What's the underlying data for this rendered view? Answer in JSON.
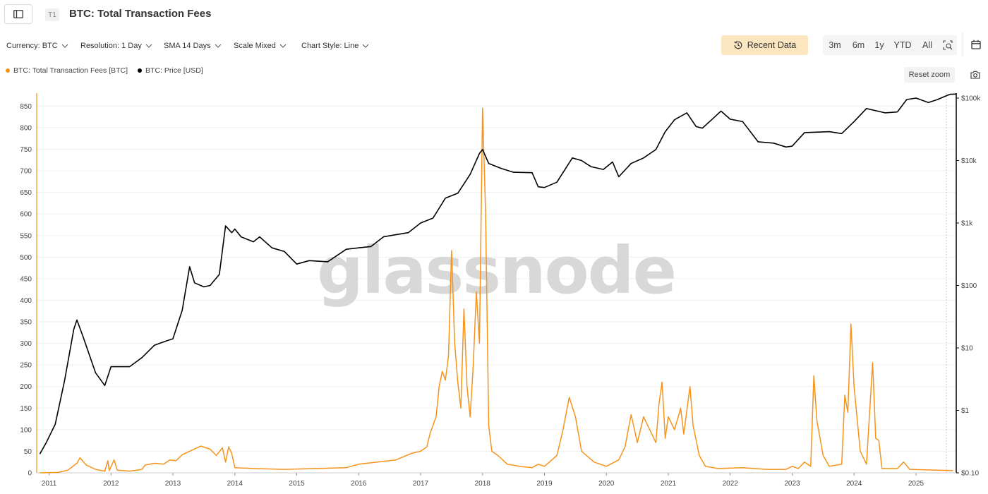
{
  "header": {
    "sidebar_icon": "sidebar-toggle-icon",
    "badge": "T1",
    "title": "BTC: Total Transaction Fees"
  },
  "controls": [
    {
      "label": "Currency: BTC"
    },
    {
      "label": "Resolution: 1 Day"
    },
    {
      "label": "SMA 14 Days"
    },
    {
      "label": "Scale Mixed"
    },
    {
      "label": "Chart Style: Line"
    }
  ],
  "recent_data": {
    "label": "Recent Data",
    "icon": "history-icon"
  },
  "ranges": [
    "3m",
    "6m",
    "1y",
    "YTD",
    "All"
  ],
  "zoom_icon": "zoom-select-icon",
  "calendar_icon": "calendar-icon",
  "reset_zoom": "Reset zoom",
  "camera_icon": "camera-icon",
  "legend": [
    {
      "label": "BTC: Total Transaction Fees [BTC]",
      "color": "#f7931a"
    },
    {
      "label": "BTC: Price [USD]",
      "color": "#000000"
    }
  ],
  "watermark": "glassnode",
  "chart_data": {
    "type": "line",
    "x_ticks": [
      "2011",
      "2012",
      "2013",
      "2014",
      "2015",
      "2016",
      "2017",
      "2018",
      "2019",
      "2020",
      "2021",
      "2022",
      "2023",
      "2024",
      "2025"
    ],
    "x_range": [
      2010.8,
      2025.65
    ],
    "y_left": {
      "ticks": [
        0,
        50,
        100,
        150,
        200,
        250,
        300,
        350,
        400,
        450,
        500,
        550,
        600,
        650,
        700,
        750,
        800,
        850
      ],
      "range": [
        0,
        880
      ]
    },
    "y_right": {
      "scale": "log",
      "ticks": [
        {
          "value": 0.1,
          "label": "$0.10"
        },
        {
          "value": 1,
          "label": "$1"
        },
        {
          "value": 10,
          "label": "$10"
        },
        {
          "value": 100,
          "label": "$100"
        },
        {
          "value": 1000,
          "label": "$1k"
        },
        {
          "value": 10000,
          "label": "$10k"
        },
        {
          "value": 100000,
          "label": "$100k"
        }
      ],
      "range": [
        0.1,
        120000
      ]
    },
    "series": [
      {
        "name": "BTC: Total Transaction Fees [BTC]",
        "axis": "left",
        "color": "#f7931a",
        "points": [
          [
            2010.85,
            0
          ],
          [
            2011.15,
            1
          ],
          [
            2011.3,
            6
          ],
          [
            2011.45,
            22
          ],
          [
            2011.5,
            35
          ],
          [
            2011.6,
            18
          ],
          [
            2011.75,
            8
          ],
          [
            2011.9,
            4
          ],
          [
            2011.95,
            28
          ],
          [
            2011.97,
            5
          ],
          [
            2012.05,
            30
          ],
          [
            2012.1,
            6
          ],
          [
            2012.3,
            4
          ],
          [
            2012.5,
            8
          ],
          [
            2012.55,
            18
          ],
          [
            2012.7,
            22
          ],
          [
            2012.85,
            20
          ],
          [
            2012.95,
            30
          ],
          [
            2013.05,
            28
          ],
          [
            2013.15,
            42
          ],
          [
            2013.3,
            52
          ],
          [
            2013.45,
            62
          ],
          [
            2013.6,
            55
          ],
          [
            2013.7,
            40
          ],
          [
            2013.8,
            58
          ],
          [
            2013.85,
            25
          ],
          [
            2013.9,
            60
          ],
          [
            2013.95,
            45
          ],
          [
            2014.0,
            12
          ],
          [
            2014.3,
            10
          ],
          [
            2014.8,
            8
          ],
          [
            2015.3,
            10
          ],
          [
            2015.8,
            12
          ],
          [
            2016.0,
            20
          ],
          [
            2016.3,
            25
          ],
          [
            2016.6,
            30
          ],
          [
            2016.85,
            45
          ],
          [
            2017.0,
            50
          ],
          [
            2017.1,
            60
          ],
          [
            2017.15,
            90
          ],
          [
            2017.2,
            110
          ],
          [
            2017.25,
            130
          ],
          [
            2017.3,
            200
          ],
          [
            2017.35,
            235
          ],
          [
            2017.4,
            215
          ],
          [
            2017.45,
            270
          ],
          [
            2017.5,
            515
          ],
          [
            2017.55,
            300
          ],
          [
            2017.6,
            210
          ],
          [
            2017.65,
            150
          ],
          [
            2017.7,
            380
          ],
          [
            2017.75,
            200
          ],
          [
            2017.8,
            130
          ],
          [
            2017.85,
            250
          ],
          [
            2017.9,
            420
          ],
          [
            2017.95,
            300
          ],
          [
            2018.0,
            845
          ],
          [
            2018.05,
            600
          ],
          [
            2018.1,
            110
          ],
          [
            2018.15,
            50
          ],
          [
            2018.25,
            40
          ],
          [
            2018.4,
            20
          ],
          [
            2018.6,
            15
          ],
          [
            2018.8,
            12
          ],
          [
            2018.9,
            20
          ],
          [
            2019.0,
            15
          ],
          [
            2019.2,
            40
          ],
          [
            2019.3,
            100
          ],
          [
            2019.4,
            175
          ],
          [
            2019.5,
            130
          ],
          [
            2019.6,
            50
          ],
          [
            2019.8,
            25
          ],
          [
            2020.0,
            15
          ],
          [
            2020.2,
            30
          ],
          [
            2020.3,
            60
          ],
          [
            2020.4,
            135
          ],
          [
            2020.5,
            70
          ],
          [
            2020.6,
            130
          ],
          [
            2020.7,
            100
          ],
          [
            2020.8,
            70
          ],
          [
            2020.85,
            160
          ],
          [
            2020.9,
            210
          ],
          [
            2020.95,
            80
          ],
          [
            2021.0,
            130
          ],
          [
            2021.1,
            100
          ],
          [
            2021.2,
            150
          ],
          [
            2021.25,
            90
          ],
          [
            2021.35,
            200
          ],
          [
            2021.4,
            110
          ],
          [
            2021.5,
            40
          ],
          [
            2021.6,
            15
          ],
          [
            2021.8,
            10
          ],
          [
            2022.2,
            12
          ],
          [
            2022.6,
            8
          ],
          [
            2022.9,
            8
          ],
          [
            2023.0,
            15
          ],
          [
            2023.1,
            10
          ],
          [
            2023.2,
            25
          ],
          [
            2023.3,
            15
          ],
          [
            2023.35,
            225
          ],
          [
            2023.4,
            120
          ],
          [
            2023.5,
            40
          ],
          [
            2023.6,
            15
          ],
          [
            2023.8,
            20
          ],
          [
            2023.85,
            180
          ],
          [
            2023.9,
            140
          ],
          [
            2023.95,
            345
          ],
          [
            2024.0,
            200
          ],
          [
            2024.1,
            50
          ],
          [
            2024.2,
            20
          ],
          [
            2024.3,
            255
          ],
          [
            2024.35,
            80
          ],
          [
            2024.4,
            75
          ],
          [
            2024.45,
            10
          ],
          [
            2024.7,
            10
          ],
          [
            2024.8,
            25
          ],
          [
            2024.9,
            8
          ],
          [
            2025.6,
            5
          ]
        ]
      },
      {
        "name": "BTC: Price [USD]",
        "axis": "right",
        "color": "#000000",
        "points": [
          [
            2010.85,
            0.2
          ],
          [
            2010.95,
            0.3
          ],
          [
            2011.1,
            0.6
          ],
          [
            2011.25,
            3
          ],
          [
            2011.4,
            20
          ],
          [
            2011.45,
            28
          ],
          [
            2011.55,
            15
          ],
          [
            2011.75,
            4
          ],
          [
            2011.9,
            2.5
          ],
          [
            2012.0,
            5
          ],
          [
            2012.1,
            5
          ],
          [
            2012.3,
            5
          ],
          [
            2012.5,
            7
          ],
          [
            2012.7,
            11
          ],
          [
            2012.9,
            13
          ],
          [
            2013.0,
            14
          ],
          [
            2013.15,
            40
          ],
          [
            2013.27,
            200
          ],
          [
            2013.35,
            110
          ],
          [
            2013.5,
            95
          ],
          [
            2013.6,
            100
          ],
          [
            2013.75,
            150
          ],
          [
            2013.85,
            900
          ],
          [
            2013.95,
            700
          ],
          [
            2014.0,
            800
          ],
          [
            2014.1,
            600
          ],
          [
            2014.3,
            500
          ],
          [
            2014.4,
            600
          ],
          [
            2014.6,
            400
          ],
          [
            2014.8,
            350
          ],
          [
            2015.0,
            220
          ],
          [
            2015.2,
            250
          ],
          [
            2015.5,
            240
          ],
          [
            2015.8,
            380
          ],
          [
            2016.0,
            400
          ],
          [
            2016.2,
            420
          ],
          [
            2016.4,
            600
          ],
          [
            2016.6,
            650
          ],
          [
            2016.8,
            700
          ],
          [
            2017.0,
            1000
          ],
          [
            2017.2,
            1200
          ],
          [
            2017.4,
            2500
          ],
          [
            2017.6,
            3000
          ],
          [
            2017.8,
            6000
          ],
          [
            2017.95,
            13000
          ],
          [
            2018.0,
            15000
          ],
          [
            2018.1,
            9000
          ],
          [
            2018.3,
            7500
          ],
          [
            2018.5,
            6500
          ],
          [
            2018.8,
            6400
          ],
          [
            2018.9,
            3800
          ],
          [
            2019.0,
            3700
          ],
          [
            2019.2,
            4500
          ],
          [
            2019.45,
            11000
          ],
          [
            2019.6,
            10000
          ],
          [
            2019.75,
            8000
          ],
          [
            2019.95,
            7200
          ],
          [
            2020.1,
            9500
          ],
          [
            2020.2,
            5500
          ],
          [
            2020.4,
            9000
          ],
          [
            2020.6,
            11000
          ],
          [
            2020.8,
            15000
          ],
          [
            2020.95,
            29000
          ],
          [
            2021.1,
            45000
          ],
          [
            2021.3,
            58000
          ],
          [
            2021.45,
            35000
          ],
          [
            2021.55,
            33000
          ],
          [
            2021.7,
            45000
          ],
          [
            2021.85,
            62000
          ],
          [
            2022.0,
            46000
          ],
          [
            2022.2,
            42000
          ],
          [
            2022.45,
            20000
          ],
          [
            2022.7,
            19000
          ],
          [
            2022.9,
            16500
          ],
          [
            2023.0,
            17000
          ],
          [
            2023.2,
            28000
          ],
          [
            2023.6,
            29000
          ],
          [
            2023.8,
            27000
          ],
          [
            2024.0,
            42000
          ],
          [
            2024.2,
            68000
          ],
          [
            2024.5,
            58000
          ],
          [
            2024.7,
            60000
          ],
          [
            2024.85,
            95000
          ],
          [
            2025.0,
            100000
          ],
          [
            2025.2,
            85000
          ],
          [
            2025.35,
            95000
          ],
          [
            2025.45,
            105000
          ],
          [
            2025.55,
            115000
          ],
          [
            2025.65,
            116000
          ]
        ]
      }
    ]
  }
}
